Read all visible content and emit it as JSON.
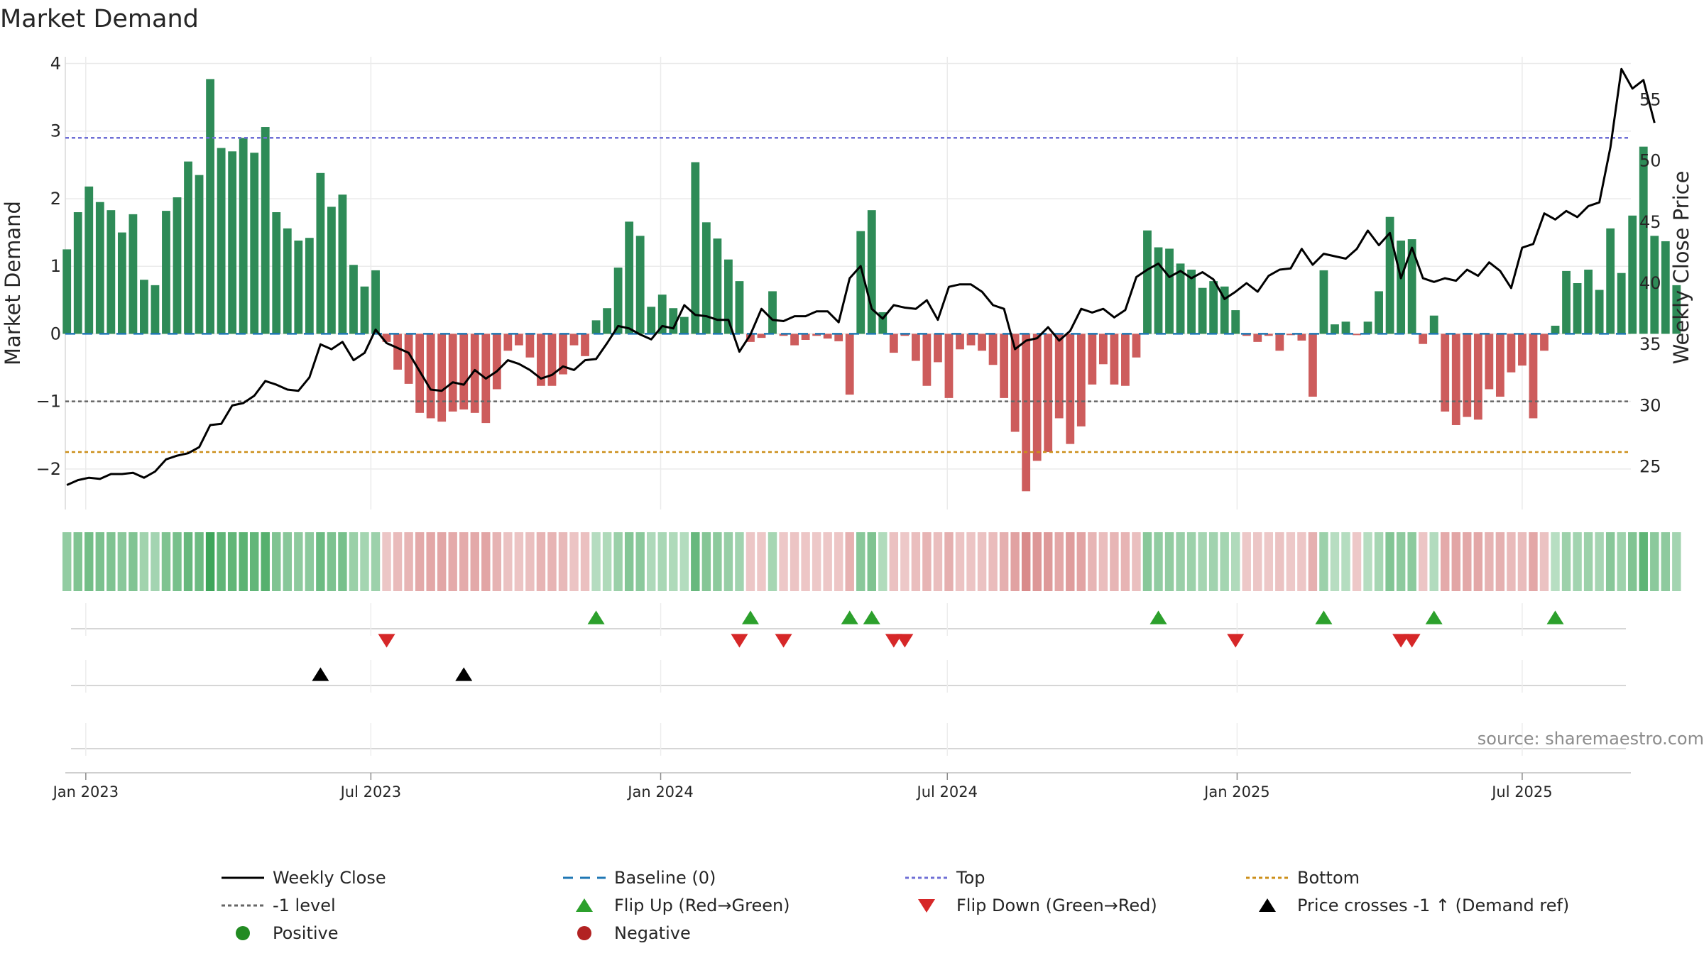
{
  "chart_data": {
    "type": "bar",
    "title": "Market Demand",
    "ylabel": "Market Demand",
    "y2label": "Weekly Close Price",
    "ylim": [
      -2.6,
      4.1
    ],
    "y2lim": [
      21.5,
      58.5
    ],
    "yticks": [
      -2,
      -1,
      0,
      1,
      2,
      3,
      4
    ],
    "y2ticks": [
      25,
      30,
      35,
      40,
      45,
      50,
      55
    ],
    "top_level": 2.9,
    "minus1_level": -1,
    "bottom_level": -1.75,
    "x_start": "2022-12-19",
    "x_end": "2025-09-08",
    "xticks": [
      {
        "date": "2023-01-01",
        "label": "Jan 2023"
      },
      {
        "date": "2023-07-01",
        "label": "Jul 2023"
      },
      {
        "date": "2024-01-01",
        "label": "Jan 2024"
      },
      {
        "date": "2024-07-01",
        "label": "Jul 2024"
      },
      {
        "date": "2025-01-01",
        "label": "Jan 2025"
      },
      {
        "date": "2025-07-01",
        "label": "Jul 2025"
      }
    ],
    "first_week": "2022-12-20",
    "demand": [
      1.25,
      1.8,
      2.18,
      1.95,
      1.83,
      1.5,
      1.77,
      0.8,
      0.72,
      1.82,
      2.02,
      2.55,
      2.35,
      3.77,
      2.75,
      2.7,
      2.9,
      2.68,
      3.06,
      1.8,
      1.56,
      1.38,
      1.42,
      2.38,
      1.88,
      2.06,
      1.02,
      0.7,
      0.94,
      -0.12,
      -0.53,
      -0.74,
      -1.17,
      -1.25,
      -1.3,
      -1.15,
      -1.12,
      -1.17,
      -1.32,
      -0.82,
      -0.25,
      -0.17,
      -0.35,
      -0.77,
      -0.77,
      -0.6,
      -0.17,
      -0.33,
      0.2,
      0.38,
      0.98,
      1.66,
      1.45,
      0.4,
      0.58,
      0.38,
      0.25,
      2.54,
      1.65,
      1.41,
      1.1,
      0.78,
      -0.12,
      -0.06,
      0.63,
      -0.03,
      -0.17,
      -0.09,
      -0.03,
      -0.07,
      -0.11,
      -0.9,
      1.52,
      1.83,
      0.32,
      -0.28,
      -0.03,
      -0.4,
      -0.77,
      -0.42,
      -0.95,
      -0.23,
      -0.17,
      -0.25,
      -0.46,
      -0.95,
      -1.45,
      -2.33,
      -1.88,
      -1.75,
      -1.25,
      -1.63,
      -1.37,
      -0.75,
      -0.45,
      -0.75,
      -0.77,
      -0.35,
      1.53,
      1.28,
      1.26,
      1.04,
      0.95,
      0.68,
      0.78,
      0.7,
      0.35,
      -0.03,
      -0.12,
      -0.03,
      -0.25,
      -0.02,
      -0.1,
      -0.93,
      0.94,
      0.14,
      0.18,
      -0.02,
      0.18,
      0.63,
      1.73,
      1.38,
      1.4,
      -0.15,
      0.27,
      -1.15,
      -1.35,
      -1.23,
      -1.27,
      -0.82,
      -0.93,
      -0.57,
      -0.47,
      -1.25,
      -0.25,
      0.12,
      0.93,
      0.75,
      0.95,
      0.65,
      1.56,
      0.9,
      1.75,
      2.77,
      1.45,
      1.37,
      0.72
    ],
    "close": [
      23.5,
      23.9,
      24.1,
      24.0,
      24.4,
      24.4,
      24.5,
      24.1,
      24.6,
      25.6,
      25.9,
      26.1,
      26.6,
      28.4,
      28.5,
      30.0,
      30.2,
      30.8,
      32.0,
      31.7,
      31.3,
      31.2,
      32.3,
      35.0,
      34.6,
      35.2,
      33.7,
      34.3,
      36.2,
      35.1,
      34.7,
      34.3,
      32.8,
      31.3,
      31.2,
      31.9,
      31.7,
      32.9,
      32.2,
      32.8,
      33.7,
      33.4,
      32.9,
      32.2,
      32.5,
      33.2,
      32.9,
      33.7,
      33.8,
      35.1,
      36.5,
      36.3,
      35.8,
      35.4,
      36.5,
      36.3,
      38.2,
      37.4,
      37.3,
      37.0,
      37.0,
      34.4,
      35.8,
      37.9,
      37.0,
      36.9,
      37.3,
      37.3,
      37.7,
      37.7,
      36.8,
      40.4,
      41.4,
      37.9,
      37.1,
      38.2,
      38.0,
      37.9,
      38.6,
      37.0,
      39.7,
      39.9,
      39.9,
      39.3,
      38.2,
      37.9,
      34.6,
      35.3,
      35.5,
      36.4,
      35.3,
      36.1,
      37.9,
      37.6,
      37.9,
      37.2,
      37.8,
      40.5,
      41.1,
      41.6,
      40.5,
      41.0,
      40.4,
      40.9,
      40.3,
      38.7,
      39.3,
      40.0,
      39.3,
      40.6,
      41.1,
      41.2,
      42.8,
      41.5,
      42.4,
      42.2,
      42.0,
      42.8,
      44.3,
      43.1,
      44.1,
      40.4,
      42.9,
      40.4,
      40.1,
      40.4,
      40.2,
      41.1,
      40.6,
      41.7,
      41.0,
      39.6,
      42.9,
      43.2,
      45.7,
      45.2,
      45.9,
      45.4,
      46.3,
      46.6,
      51.1,
      57.5,
      55.9,
      56.6,
      53.1
    ],
    "flip_up_weeks": [
      48,
      62,
      71,
      73,
      99,
      114,
      124,
      135
    ],
    "flip_down_weeks": [
      29,
      61,
      65,
      75,
      76,
      106,
      121,
      122
    ],
    "price_cross_weeks": [
      23,
      36
    ],
    "colors": {
      "positive_bar": "#2e8b57",
      "negative_bar": "#cd5c5c",
      "price_line": "#000000",
      "baseline": "#1f77b4",
      "top_line": "#6f6fd6",
      "minus1_line": "#666666",
      "bottom_line": "#cc8f1a",
      "flip_up": "#2ca02c",
      "flip_down": "#d62728",
      "price_cross": "#000000",
      "positive_dot": "#228b22",
      "negative_dot": "#b22222"
    },
    "legend": [
      {
        "key": "close",
        "label": "Weekly Close"
      },
      {
        "key": "baseline",
        "label": "Baseline (0)"
      },
      {
        "key": "top",
        "label": "Top"
      },
      {
        "key": "bottom",
        "label": "Bottom"
      },
      {
        "key": "minus1",
        "label": "-1 level"
      },
      {
        "key": "flipup",
        "label": "Flip Up (Red→Green)"
      },
      {
        "key": "flipdown",
        "label": "Flip Down (Green→Red)"
      },
      {
        "key": "cross",
        "label": "Price crosses -1 ↑ (Demand ref)"
      },
      {
        "key": "positive",
        "label": "Positive"
      },
      {
        "key": "negative",
        "label": "Negative"
      }
    ],
    "source": "source: sharemaestro.com"
  }
}
